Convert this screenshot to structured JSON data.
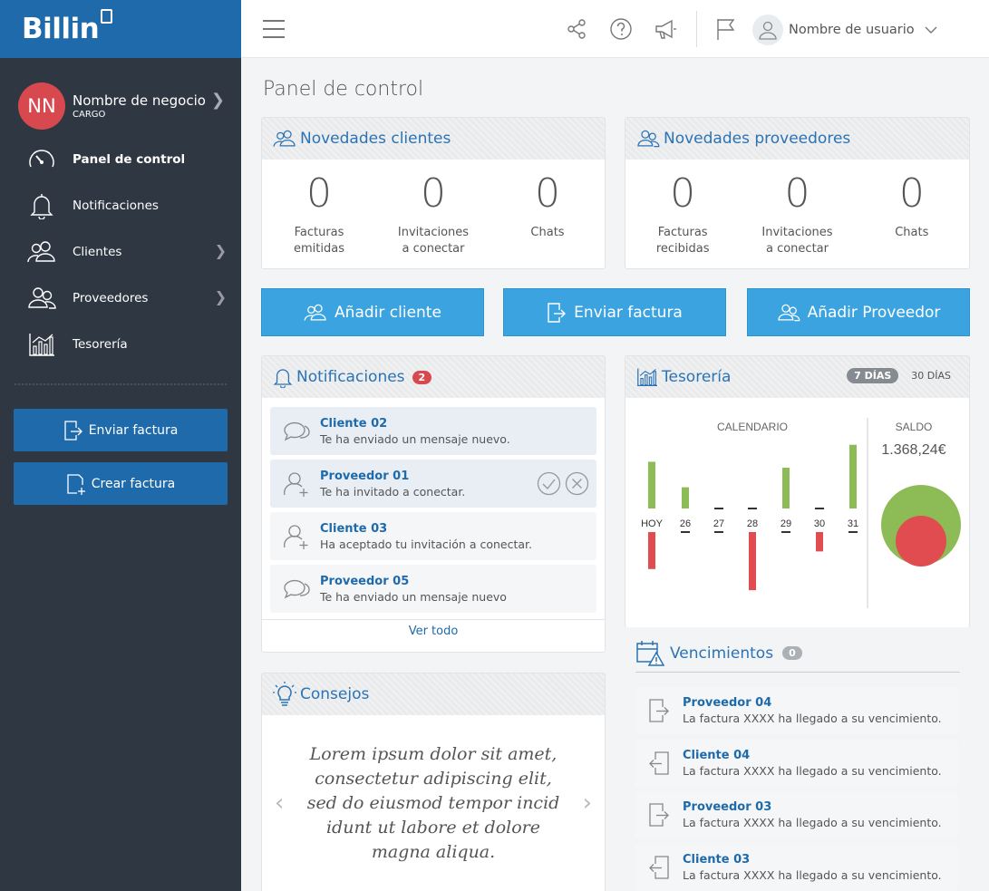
{
  "app": {
    "logo": "Billin"
  },
  "business": {
    "initials": "NN",
    "name": "Nombre de negocio",
    "role": "CARGO"
  },
  "nav": [
    {
      "label": "Panel de control",
      "icon": "gauge-icon",
      "active": true
    },
    {
      "label": "Notificaciones",
      "icon": "bell-icon"
    },
    {
      "label": "Clientes",
      "icon": "clients-icon",
      "chevron": true
    },
    {
      "label": "Proveedores",
      "icon": "providers-icon",
      "chevron": true
    },
    {
      "label": "Tesorería",
      "icon": "chart-icon"
    }
  ],
  "sidebar_buttons": {
    "send": "Enviar factura",
    "create": "Crear factura"
  },
  "topbar": {
    "user": "Nombre de usuario"
  },
  "page_title": "Panel de control",
  "clientes": {
    "title": "Novedades clientes",
    "stats": [
      {
        "value": "0",
        "label": "Facturas\nemitidas"
      },
      {
        "value": "0",
        "label": "Invitaciones\na conectar"
      },
      {
        "value": "0",
        "label": "Chats"
      }
    ]
  },
  "proveedores": {
    "title": "Novedades proveedores",
    "stats": [
      {
        "value": "0",
        "label": "Facturas\nrecibidas"
      },
      {
        "value": "0",
        "label": "Invitaciones\na conectar"
      },
      {
        "value": "0",
        "label": "Chats"
      }
    ]
  },
  "actions": {
    "add_client": "Añadir cliente",
    "send_invoice": "Enviar factura",
    "add_provider": "Añadir Proveedor"
  },
  "notifications": {
    "title": "Notificaciones",
    "count": "2",
    "items": [
      {
        "title": "Cliente 02",
        "text": "Te ha enviado un mensaje nuevo.",
        "icon": "chat-icon",
        "unread": true
      },
      {
        "title": "Proveedor 01",
        "text": "Te ha invitado a conectar.",
        "icon": "user-plus-icon",
        "unread": true,
        "actions": true
      },
      {
        "title": "Cliente 03",
        "text": "Ha aceptado tu invitación a conectar.",
        "icon": "user-plus-icon"
      },
      {
        "title": "Proveedor 05",
        "text": "Te ha enviado un mensaje nuevo",
        "icon": "chat-icon"
      }
    ],
    "see_all": "Ver todo"
  },
  "tesoreria": {
    "title": "Tesorería",
    "tabs": [
      "7 DÍAS",
      "30 DÍAS"
    ],
    "calendar_label": "CALENDARIO",
    "balance_label": "SALDO",
    "balance": "1.368,24€",
    "colors": {
      "income": "#8dbb55",
      "expense": "#e04c50"
    }
  },
  "chart_data": {
    "type": "bar",
    "title": "CALENDARIO",
    "categories": [
      "HOY",
      "26",
      "27",
      "28",
      "29",
      "30",
      "31"
    ],
    "series": [
      {
        "values": [
          55,
          25,
          0,
          0,
          48,
          0,
          75
        ]
      },
      {
        "values": [
          42,
          0,
          0,
          66,
          0,
          22,
          0
        ]
      }
    ],
    "ylim": [
      -70,
      80
    ]
  },
  "consejos": {
    "title": "Consejos",
    "text": "Lorem ipsum dolor sit amet,\nconsectetur adipiscing elit,\nsed do eiusmod tempor incid\nidunt ut labore et dolore\nmagna aliqua."
  },
  "vencimientos": {
    "title": "Vencimientos",
    "count": "0",
    "items": [
      {
        "title": "Proveedor 04",
        "text": "La factura XXXX ha llegado a su vencimiento.",
        "icon": "invoice-out-icon"
      },
      {
        "title": "Cliente 04",
        "text": "La factura XXXX ha llegado a su vencimiento.",
        "icon": "invoice-in-icon"
      },
      {
        "title": "Proveedor 03",
        "text": "La factura XXXX ha llegado a su vencimiento.",
        "icon": "invoice-out-icon"
      },
      {
        "title": "Cliente 03",
        "text": "La factura XXXX ha llegado a su vencimiento.",
        "icon": "invoice-in-icon"
      }
    ]
  }
}
